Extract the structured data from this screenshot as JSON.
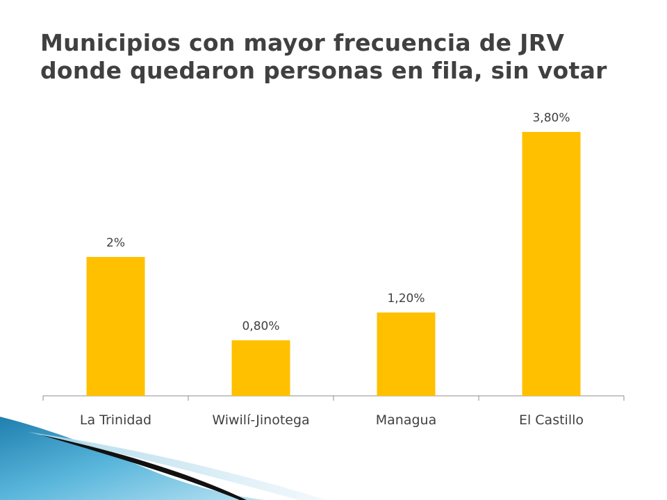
{
  "slide": {
    "title_line1": "Municipios con mayor frecuencia de JRV",
    "title_line2": "donde quedaron personas en fila, sin votar"
  },
  "colors": {
    "bar": "#FFC000",
    "axis": "#8C8C8C",
    "title": "#404040"
  },
  "chart_data": {
    "type": "bar",
    "categories": [
      "La Trinidad",
      "Wiwilí-Jinotega",
      "Managua",
      "El Castillo"
    ],
    "values": [
      2.0,
      0.8,
      1.2,
      3.8
    ],
    "data_labels": [
      "2%",
      "0,80%",
      "1,20%",
      "3,80%"
    ],
    "ylim": [
      0,
      4
    ],
    "grid": false,
    "legend": "none"
  }
}
